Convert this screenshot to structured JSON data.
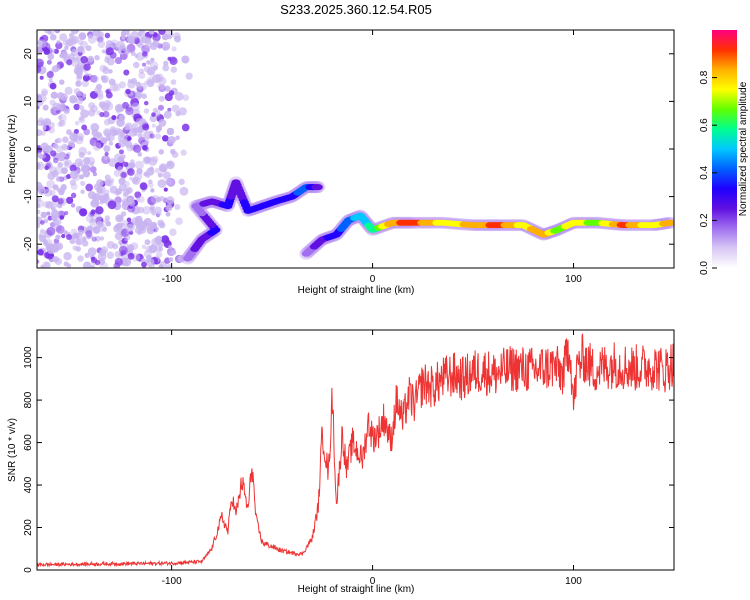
{
  "title": "S233.2025.360.12.54.R05",
  "chart_data": [
    {
      "type": "heatmap",
      "xlabel": "Height of straight line (km)",
      "ylabel": "Frequency (Hz)",
      "xlim": [
        -167,
        150
      ],
      "ylim": [
        -25,
        25
      ],
      "xticks": [
        -100,
        0,
        100
      ],
      "yticks": [
        20,
        10,
        0,
        -10,
        -20
      ],
      "colorbar": {
        "label": "Normalized spectral amplitude",
        "ticks": [
          0.0,
          0.2,
          0.4,
          0.6,
          0.8
        ],
        "range": [
          0,
          1
        ],
        "colors": [
          "#ffffff",
          "#d8c8f4",
          "#a070f0",
          "#6010e0",
          "#2000ff",
          "#0060ff",
          "#00c8ff",
          "#00ff90",
          "#60ff00",
          "#ffff00",
          "#ffb000",
          "#ff3000",
          "#ff0080"
        ]
      },
      "features": {
        "noise_region_x": [
          -167,
          -90
        ],
        "trace_points": [
          {
            "x": -92,
            "y": -23,
            "v": 0.2
          },
          {
            "x": -85,
            "y": -19,
            "v": 0.3
          },
          {
            "x": -78,
            "y": -17,
            "v": 0.35
          },
          {
            "x": -88,
            "y": -12,
            "v": 0.2
          },
          {
            "x": -80,
            "y": -11,
            "v": 0.3
          },
          {
            "x": -72,
            "y": -12,
            "v": 0.35
          },
          {
            "x": -68,
            "y": -7,
            "v": 0.3
          },
          {
            "x": -62,
            "y": -13,
            "v": 0.35
          },
          {
            "x": -55,
            "y": -12,
            "v": 0.4
          },
          {
            "x": -48,
            "y": -11,
            "v": 0.35
          },
          {
            "x": -40,
            "y": -10,
            "v": 0.4
          },
          {
            "x": -33,
            "y": -8,
            "v": 0.45
          },
          {
            "x": -27,
            "y": -8,
            "v": 0.3
          },
          {
            "x": -33,
            "y": -22,
            "v": 0.2
          },
          {
            "x": -25,
            "y": -19,
            "v": 0.3
          },
          {
            "x": -18,
            "y": -18,
            "v": 0.4
          },
          {
            "x": -12,
            "y": -15,
            "v": 0.45
          },
          {
            "x": -6,
            "y": -14,
            "v": 0.55
          },
          {
            "x": 0,
            "y": -17,
            "v": 0.6
          },
          {
            "x": 10,
            "y": -15.5,
            "v": 0.9
          },
          {
            "x": 20,
            "y": -15.5,
            "v": 0.95
          },
          {
            "x": 35,
            "y": -15.5,
            "v": 0.8
          },
          {
            "x": 50,
            "y": -16,
            "v": 0.85
          },
          {
            "x": 62,
            "y": -16,
            "v": 0.95
          },
          {
            "x": 75,
            "y": -16,
            "v": 0.8
          },
          {
            "x": 85,
            "y": -18,
            "v": 0.9
          },
          {
            "x": 92,
            "y": -17,
            "v": 0.7
          },
          {
            "x": 100,
            "y": -15.5,
            "v": 0.8
          },
          {
            "x": 112,
            "y": -15.5,
            "v": 0.7
          },
          {
            "x": 125,
            "y": -16,
            "v": 0.95
          },
          {
            "x": 140,
            "y": -16,
            "v": 0.75
          },
          {
            "x": 148,
            "y": -15.5,
            "v": 0.9
          }
        ]
      }
    },
    {
      "type": "line",
      "xlabel": "Height of straight line (km)",
      "ylabel": "SNR (10 * v/v)",
      "xlim": [
        -167,
        150
      ],
      "ylim": [
        0,
        1130
      ],
      "xticks": [
        -100,
        0,
        100
      ],
      "yticks": [
        0,
        200,
        400,
        600,
        800,
        1000
      ],
      "color": "#ee3333",
      "series": [
        {
          "name": "SNR",
          "x": [
            -167,
            -140,
            -120,
            -100,
            -85,
            -80,
            -75,
            -72,
            -70,
            -68,
            -65,
            -62,
            -60,
            -58,
            -55,
            -50,
            -45,
            -40,
            -35,
            -30,
            -27,
            -25,
            -22,
            -20,
            -18,
            -15,
            -13,
            -10,
            -7,
            -5,
            -2,
            0,
            3,
            6,
            9,
            12,
            15,
            18,
            21,
            25,
            30,
            35,
            40,
            45,
            50,
            55,
            60,
            70,
            80,
            90,
            95,
            98,
            100,
            102,
            105,
            110,
            120,
            130,
            140,
            145,
            150
          ],
          "values": [
            25,
            28,
            30,
            32,
            40,
            100,
            250,
            180,
            350,
            260,
            420,
            280,
            500,
            240,
            130,
            110,
            90,
            80,
            75,
            150,
            300,
            650,
            450,
            820,
            300,
            650,
            470,
            600,
            550,
            520,
            700,
            620,
            650,
            720,
            600,
            800,
            700,
            820,
            780,
            880,
            860,
            900,
            920,
            900,
            930,
            940,
            920,
            950,
            940,
            960,
            920,
            1080,
            780,
            960,
            1000,
            940,
            970,
            950,
            960,
            940,
            980
          ]
        }
      ]
    }
  ]
}
